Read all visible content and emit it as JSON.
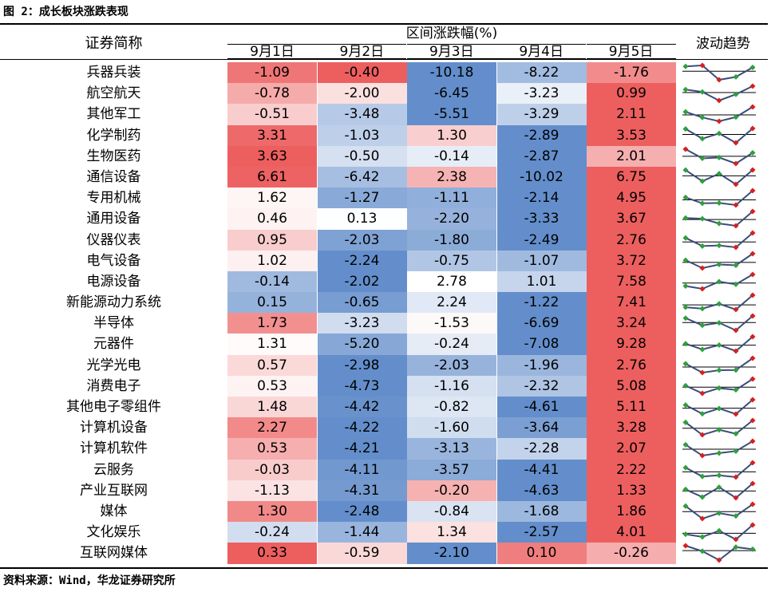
{
  "title": "图 2：成长板块涨跌表现",
  "header": {
    "name_col": "证券简称",
    "group": "区间涨跌幅(%)",
    "trend_col": "波动趋势",
    "dates": [
      "9月1日",
      "9月2日",
      "9月3日",
      "9月4日",
      "9月5日"
    ]
  },
  "colors": {
    "negative": "#5b88c8",
    "positive": "#ec5757",
    "neutral": "#ffffff",
    "spark_line": "#3a4d7a",
    "spark_point": "#2e9f3e",
    "spark_extreme": "#d62020"
  },
  "rows": [
    {
      "name": "兵器兵装",
      "values": [
        "-1.09",
        "-0.40",
        "-10.18",
        "-8.22",
        "-1.76"
      ],
      "nums": [
        -1.09,
        -0.4,
        -10.18,
        -8.22,
        -1.76
      ]
    },
    {
      "name": "航空航天",
      "values": [
        "-0.78",
        "-2.00",
        "-6.45",
        "-3.23",
        "0.99"
      ],
      "nums": [
        -0.78,
        -2.0,
        -6.45,
        -3.23,
        0.99
      ]
    },
    {
      "name": "其他军工",
      "values": [
        "-0.51",
        "-3.48",
        "-5.51",
        "-3.29",
        "2.11"
      ],
      "nums": [
        -0.51,
        -3.48,
        -5.51,
        -3.29,
        2.11
      ]
    },
    {
      "name": "化学制药",
      "values": [
        "3.31",
        "-1.03",
        "1.30",
        "-2.89",
        "3.53"
      ],
      "nums": [
        3.31,
        -1.03,
        1.3,
        -2.89,
        3.53
      ]
    },
    {
      "name": "生物医药",
      "values": [
        "3.63",
        "-0.50",
        "-0.14",
        "-2.87",
        "2.01"
      ],
      "nums": [
        3.63,
        -0.5,
        -0.14,
        -2.87,
        2.01
      ]
    },
    {
      "name": "通信设备",
      "values": [
        "6.61",
        "-6.42",
        "2.38",
        "-10.02",
        "6.75"
      ],
      "nums": [
        6.61,
        -6.42,
        2.38,
        -10.02,
        6.75
      ]
    },
    {
      "name": "专用机械",
      "values": [
        "1.62",
        "-1.27",
        "-1.11",
        "-2.14",
        "4.95"
      ],
      "nums": [
        1.62,
        -1.27,
        -1.11,
        -2.14,
        4.95
      ]
    },
    {
      "name": "通用设备",
      "values": [
        "0.46",
        "0.13",
        "-2.20",
        "-3.33",
        "3.67"
      ],
      "nums": [
        0.46,
        0.13,
        -2.2,
        -3.33,
        3.67
      ]
    },
    {
      "name": "仪器仪表",
      "values": [
        "0.95",
        "-2.03",
        "-1.80",
        "-2.49",
        "2.76"
      ],
      "nums": [
        0.95,
        -2.03,
        -1.8,
        -2.49,
        2.76
      ]
    },
    {
      "name": "电气设备",
      "values": [
        "1.02",
        "-2.24",
        "-0.75",
        "-1.07",
        "3.72"
      ],
      "nums": [
        1.02,
        -2.24,
        -0.75,
        -1.07,
        3.72
      ]
    },
    {
      "name": "电源设备",
      "values": [
        "-0.14",
        "-2.02",
        "2.78",
        "1.01",
        "7.58"
      ],
      "nums": [
        -0.14,
        -2.02,
        2.78,
        1.01,
        7.58
      ]
    },
    {
      "name": "新能源动力系统",
      "values": [
        "0.15",
        "-0.65",
        "2.24",
        "-1.22",
        "7.41"
      ],
      "nums": [
        0.15,
        -0.65,
        2.24,
        -1.22,
        7.41
      ]
    },
    {
      "name": "半导体",
      "values": [
        "1.73",
        "-3.23",
        "-1.53",
        "-6.69",
        "3.24"
      ],
      "nums": [
        1.73,
        -3.23,
        -1.53,
        -6.69,
        3.24
      ]
    },
    {
      "name": "元器件",
      "values": [
        "1.31",
        "-5.20",
        "-0.24",
        "-7.08",
        "9.28"
      ],
      "nums": [
        1.31,
        -5.2,
        -0.24,
        -7.08,
        9.28
      ]
    },
    {
      "name": "光学光电",
      "values": [
        "0.57",
        "-2.98",
        "-2.03",
        "-1.96",
        "2.76"
      ],
      "nums": [
        0.57,
        -2.98,
        -2.03,
        -1.96,
        2.76
      ]
    },
    {
      "name": "消费电子",
      "values": [
        "0.53",
        "-4.73",
        "-1.16",
        "-2.32",
        "5.08"
      ],
      "nums": [
        0.53,
        -4.73,
        -1.16,
        -2.32,
        5.08
      ]
    },
    {
      "name": "其他电子零组件",
      "values": [
        "1.48",
        "-4.42",
        "-0.82",
        "-4.61",
        "5.11"
      ],
      "nums": [
        1.48,
        -4.42,
        -0.82,
        -4.61,
        5.11
      ]
    },
    {
      "name": "计算机设备",
      "values": [
        "2.27",
        "-4.22",
        "-1.60",
        "-3.64",
        "3.28"
      ],
      "nums": [
        2.27,
        -4.22,
        -1.6,
        -3.64,
        3.28
      ]
    },
    {
      "name": "计算机软件",
      "values": [
        "0.53",
        "-4.21",
        "-3.13",
        "-2.28",
        "2.07"
      ],
      "nums": [
        0.53,
        -4.21,
        -3.13,
        -2.28,
        2.07
      ]
    },
    {
      "name": "云服务",
      "values": [
        "-0.03",
        "-4.11",
        "-3.57",
        "-4.41",
        "2.22"
      ],
      "nums": [
        -0.03,
        -4.11,
        -3.57,
        -4.41,
        2.22
      ]
    },
    {
      "name": "产业互联网",
      "values": [
        "-1.13",
        "-4.31",
        "-0.20",
        "-4.63",
        "1.33"
      ],
      "nums": [
        -1.13,
        -4.31,
        -0.2,
        -4.63,
        1.33
      ]
    },
    {
      "name": "媒体",
      "values": [
        "1.30",
        "-2.48",
        "-0.84",
        "-1.68",
        "1.86"
      ],
      "nums": [
        1.3,
        -2.48,
        -0.84,
        -1.68,
        1.86
      ]
    },
    {
      "name": "文化娱乐",
      "values": [
        "-0.24",
        "-1.44",
        "1.34",
        "-2.57",
        "4.01"
      ],
      "nums": [
        -0.24,
        -1.44,
        1.34,
        -2.57,
        4.01
      ]
    },
    {
      "name": "互联网媒体",
      "values": [
        "0.33",
        "-0.59",
        "-2.10",
        "0.10",
        "-0.26"
      ],
      "nums": [
        0.33,
        -0.59,
        -2.1,
        0.1,
        -0.26
      ]
    }
  ],
  "source": "资料来源：Wind，华龙证券研究所"
}
